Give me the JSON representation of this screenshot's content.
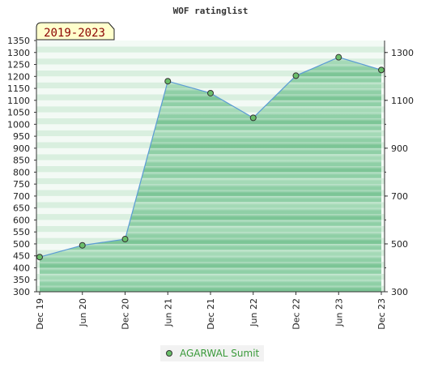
{
  "chart_data": {
    "type": "area",
    "title": "WOF ratinglist",
    "badge": "2019-2023",
    "categories": [
      "Dec 19",
      "Jun 20",
      "Dec 20",
      "Jun 21",
      "Dec 21",
      "Jun 22",
      "Dec 22",
      "Jun 23",
      "Dec 23"
    ],
    "series": [
      {
        "name": "AGARWAL Sumit",
        "values": [
          445,
          494,
          520,
          1180,
          1130,
          1027,
          1203,
          1280,
          1227
        ]
      }
    ],
    "left_axis": {
      "ylim": [
        300,
        1350
      ],
      "ticks": [
        "300",
        "350",
        "400",
        "450",
        "500",
        "550",
        "600",
        "650",
        "700",
        "750",
        "800",
        "850",
        "900",
        "950",
        "1000",
        "1050",
        "1100",
        "1150",
        "1200",
        "1250",
        "1300",
        "1350"
      ]
    },
    "right_axis": {
      "ticks": [
        "300",
        "500",
        "700",
        "900",
        "1100",
        "1300"
      ]
    },
    "grid": true,
    "legend": "bottom-center",
    "colors": {
      "line": "#5b9bd5",
      "marker": "#6abf6a",
      "fill_light": "#e6f4e9",
      "fill_dark": "#7fc99a",
      "legend_text": "#3a9a3a",
      "badge_bg": "#ffffcc",
      "badge_text": "#8b0000"
    }
  }
}
